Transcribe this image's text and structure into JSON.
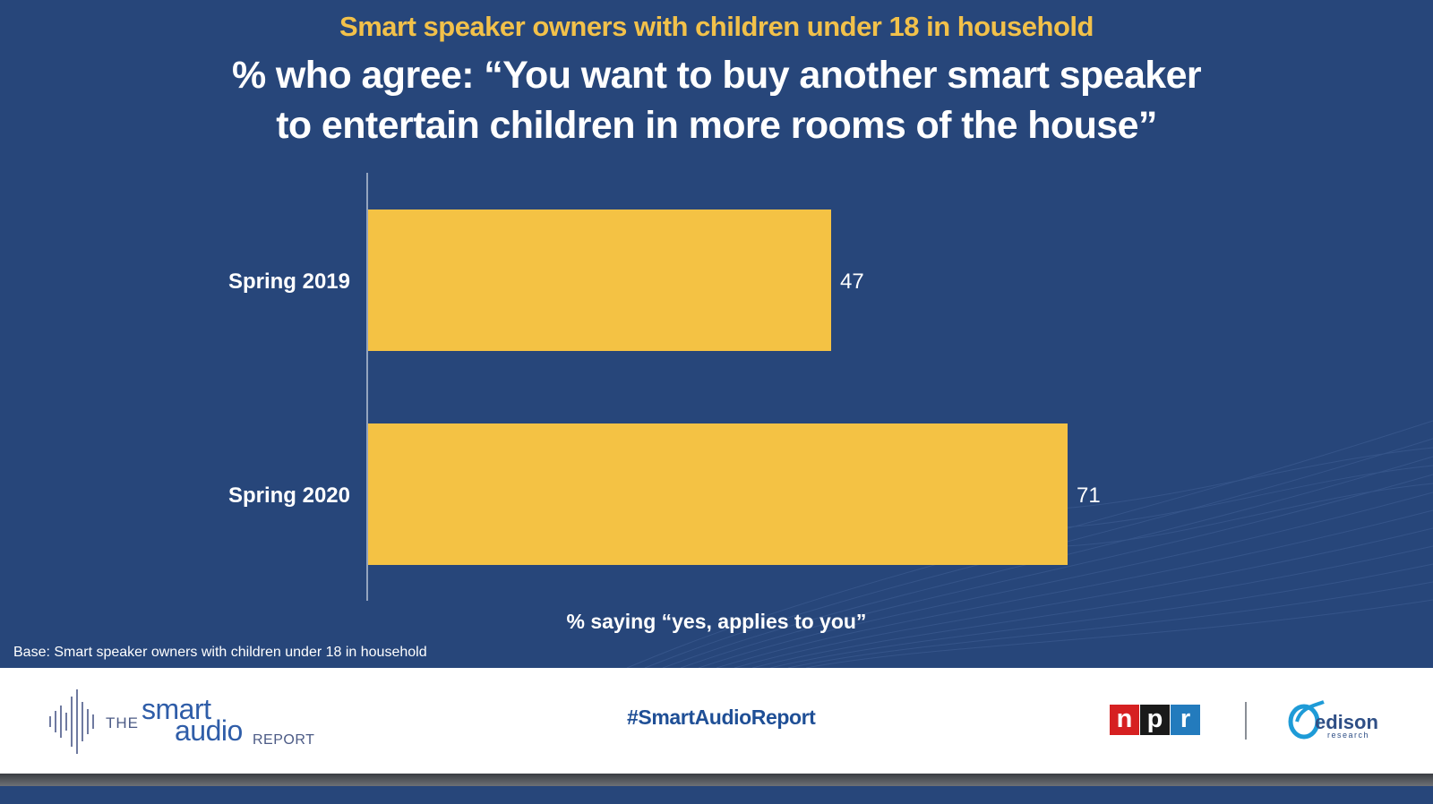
{
  "header": {
    "subtitle": "Smart speaker owners with children under 18 in household",
    "title_line1": "% who agree: “You want to buy another smart speaker",
    "title_line2": "to entertain children in more rooms of the house”"
  },
  "chart_data": {
    "type": "bar",
    "orientation": "horizontal",
    "categories": [
      "Spring 2019",
      "Spring 2020"
    ],
    "values": [
      47,
      71
    ],
    "xlabel": "% saying “yes, applies to you”",
    "ylabel": "",
    "xlim": [
      0,
      100
    ],
    "grid": false,
    "bar_color": "#f4c244",
    "label_color": "#ffffff"
  },
  "footnote": "Base: Smart speaker owners with children under 18 in household",
  "footer": {
    "hashtag": "#SmartAudioReport",
    "smart_audio_logo": {
      "the": "THE",
      "smart": "smart",
      "audio": "audio",
      "report": "REPORT"
    },
    "npr_logo": {
      "letters": [
        "n",
        "p",
        "r"
      ],
      "colors": [
        "#d62021",
        "#1a1a1a",
        "#237bbd"
      ]
    },
    "edison_logo": {
      "name": "edison",
      "sub": "research"
    }
  },
  "colors": {
    "background": "#27467a",
    "accent": "#f2c14a",
    "footer_bg": "#ffffff",
    "hashtag": "#1f4f96"
  }
}
